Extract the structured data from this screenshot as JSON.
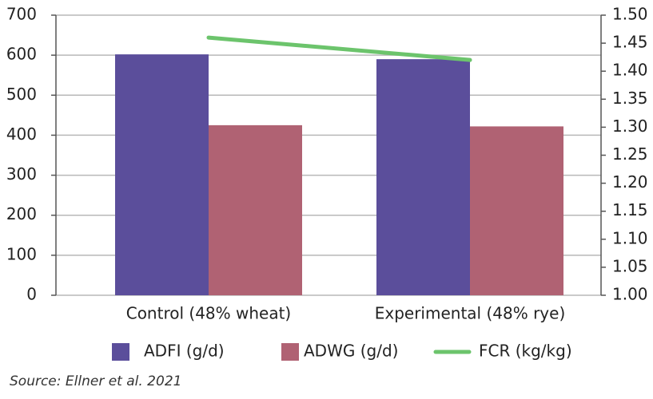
{
  "chart_data": {
    "type": "bar_line",
    "categories": [
      "Control (48% wheat)",
      "Experimental (48% rye)"
    ],
    "series": [
      {
        "name": "ADFI (g/d)",
        "color": "#5b4e9b",
        "values": [
          602,
          590
        ]
      },
      {
        "name": "ADWG (g/d)",
        "color": "#b06273",
        "values": [
          425,
          422
        ]
      },
      {
        "name": "FCR (kg/kg)",
        "color": "#6cc46c",
        "values": [
          1.46,
          1.42
        ],
        "axis": "y2",
        "type": "line"
      }
    ],
    "ylim": [
      0,
      700
    ],
    "yticks": [
      0,
      100,
      200,
      300,
      400,
      500,
      600,
      700
    ],
    "y2lim": [
      1,
      1.5
    ],
    "y2ticks": [
      {
        "value": 1,
        "label": "1.00"
      },
      1.05,
      {
        "value": 1.1,
        "label": "1.10"
      },
      1.15,
      {
        "value": 1.2,
        "label": "1.20"
      },
      1.25,
      {
        "value": 1.3,
        "label": "1.30"
      },
      1.35,
      {
        "value": 1.4,
        "label": "1.40"
      },
      1.45,
      {
        "value": 1.5,
        "label": "1.50"
      }
    ],
    "grid": true,
    "source": "Source: Ellner et al. 2021"
  }
}
